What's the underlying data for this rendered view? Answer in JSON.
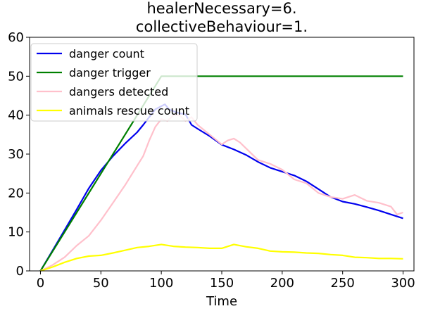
{
  "chart_data": {
    "type": "line",
    "title_lines": [
      "healerNecessary=6.",
      "collectiveBehaviour=1."
    ],
    "xlabel": "Time",
    "ylabel": "",
    "xlim": [
      -9,
      309
    ],
    "ylim": [
      0,
      60
    ],
    "xticks": [
      0,
      50,
      100,
      150,
      200,
      250,
      300
    ],
    "yticks": [
      0,
      10,
      20,
      30,
      40,
      50,
      60
    ],
    "grid": false,
    "legend_position": "top-left",
    "series": [
      {
        "name": "danger count",
        "color": "#0000ee",
        "x": [
          0,
          10,
          20,
          30,
          40,
          50,
          60,
          70,
          80,
          85,
          90,
          95,
          100,
          103,
          106,
          110,
          115,
          120,
          125,
          130,
          140,
          150,
          160,
          170,
          180,
          190,
          200,
          210,
          220,
          230,
          240,
          250,
          260,
          270,
          280,
          290,
          300
        ],
        "y": [
          0,
          5.2,
          10.5,
          15.8,
          21.2,
          25.8,
          29.5,
          32.7,
          35.6,
          37.5,
          39.5,
          41.5,
          42.3,
          42.8,
          41.6,
          41.0,
          40.5,
          40.2,
          37.5,
          36.5,
          34.6,
          32.4,
          31.2,
          29.8,
          28.0,
          26.5,
          25.5,
          24.5,
          23.0,
          21.0,
          19.0,
          17.8,
          17.2,
          16.4,
          15.5,
          14.5,
          13.5
        ]
      },
      {
        "name": "danger trigger",
        "color": "#008000",
        "x": [
          0,
          100,
          300
        ],
        "y": [
          0,
          50,
          50
        ]
      },
      {
        "name": "dangers detected",
        "color": "#ffc0cb",
        "x": [
          0,
          10,
          20,
          30,
          40,
          50,
          60,
          70,
          80,
          85,
          90,
          95,
          100,
          105,
          110,
          115,
          120,
          125,
          130,
          140,
          150,
          155,
          160,
          165,
          170,
          180,
          190,
          200,
          210,
          220,
          230,
          240,
          250,
          260,
          270,
          280,
          290,
          295,
          300
        ],
        "y": [
          0,
          1.5,
          3.5,
          6.5,
          9.0,
          13.0,
          17.5,
          22.0,
          27.0,
          29.5,
          33.5,
          37.0,
          39.0,
          38.5,
          40.0,
          40.0,
          38.5,
          39.5,
          37.5,
          35.0,
          32.5,
          33.5,
          34.0,
          33.0,
          31.5,
          28.5,
          27.5,
          26.0,
          23.5,
          22.5,
          20.0,
          19.0,
          18.5,
          19.5,
          18.0,
          17.5,
          16.5,
          14.5,
          15.0
        ]
      },
      {
        "name": "animals rescue count",
        "color": "#ffff00",
        "x": [
          0,
          10,
          20,
          30,
          40,
          50,
          60,
          70,
          80,
          90,
          100,
          110,
          120,
          130,
          140,
          150,
          160,
          170,
          180,
          190,
          200,
          210,
          220,
          230,
          240,
          250,
          260,
          270,
          280,
          290,
          300
        ],
        "y": [
          0,
          1.0,
          2.2,
          3.2,
          3.8,
          4.0,
          4.6,
          5.3,
          6.0,
          6.3,
          6.8,
          6.3,
          6.1,
          6.0,
          5.8,
          5.8,
          6.8,
          6.2,
          5.8,
          5.1,
          4.9,
          4.8,
          4.6,
          4.5,
          4.2,
          4.0,
          3.5,
          3.4,
          3.2,
          3.2,
          3.1
        ]
      }
    ]
  }
}
